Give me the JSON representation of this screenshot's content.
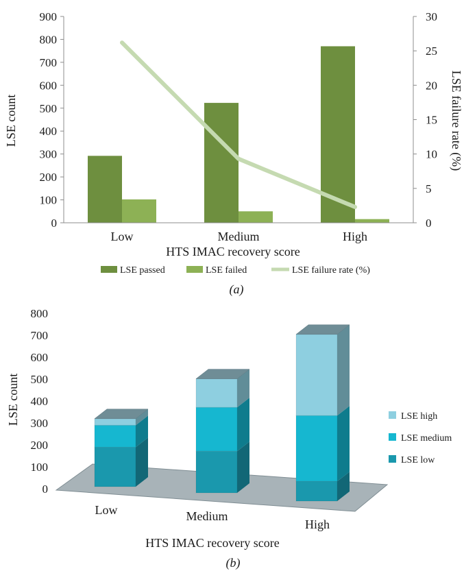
{
  "chart_data": [
    {
      "panel": "(a)",
      "type": "bar",
      "categories": [
        "Low",
        "Medium",
        "High"
      ],
      "xlabel": "HTS IMAC recovery score",
      "ylabel": "LSE count",
      "y2label": "LSE failure rate (%)",
      "ylim": [
        0,
        900
      ],
      "y2lim": [
        0,
        30
      ],
      "yticks": [
        0,
        100,
        200,
        300,
        400,
        500,
        600,
        700,
        800,
        900
      ],
      "y2ticks": [
        0,
        5,
        10,
        15,
        20,
        25,
        30
      ],
      "series": [
        {
          "name": "LSE passed",
          "kind": "bar",
          "axis": "left",
          "color": "#6e8f3f",
          "values": [
            292,
            523,
            770
          ]
        },
        {
          "name": "LSE failed",
          "kind": "bar",
          "axis": "left",
          "color": "#8db155",
          "values": [
            102,
            50,
            16
          ]
        },
        {
          "name": "LSE failure rate (%)",
          "kind": "line",
          "axis": "right",
          "color": "#c5dab1",
          "values": [
            26.2,
            9.3,
            2.3
          ]
        }
      ],
      "legend": "bottom",
      "grid": false
    },
    {
      "panel": "(b)",
      "type": "bar",
      "stacked": true,
      "three_d": true,
      "categories": [
        "Low",
        "Medium",
        "High"
      ],
      "xlabel": "HTS IMAC recovery score",
      "ylabel": "LSE count",
      "ylim": [
        0,
        800
      ],
      "yticks": [
        0,
        100,
        200,
        300,
        400,
        500,
        600,
        700,
        800
      ],
      "series": [
        {
          "name": "LSE low",
          "color": "#1a98ad",
          "values": [
            180,
            190,
            90
          ]
        },
        {
          "name": "LSE medium",
          "color": "#16b7d0",
          "values": [
            100,
            200,
            300
          ]
        },
        {
          "name": "LSE high",
          "color": "#8ecfe0",
          "values": [
            30,
            130,
            370
          ]
        }
      ],
      "legend_order": [
        "LSE high",
        "LSE medium",
        "LSE low"
      ],
      "legend": "right",
      "grid": false
    }
  ],
  "captions": {
    "a": "(a)",
    "b": "(b)"
  }
}
